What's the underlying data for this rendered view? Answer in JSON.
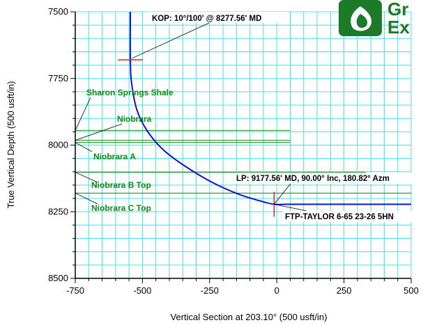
{
  "chart_data": {
    "type": "line",
    "xlabel": "Vertical Section at 203.10° (500 usft/in)",
    "ylabel": "True Vertical Depth (500 usft/in)",
    "xlim": [
      -750,
      500
    ],
    "ylim": [
      7500,
      8500
    ],
    "y_inverted": true,
    "x_ticks": [
      -750,
      -500,
      -250,
      0,
      250,
      500
    ],
    "y_ticks": [
      7500,
      7750,
      8000,
      8250,
      8500
    ],
    "x_tick_labels": [
      "-750",
      "-500",
      "-250",
      "0",
      "250",
      "500"
    ],
    "y_tick_labels": [
      "7500",
      "7750",
      "8000",
      "8250",
      "8500"
    ],
    "grid": true,
    "well_path": {
      "color": "#1010d0",
      "x": [
        -545,
        -545,
        -540,
        -520,
        -480,
        -420,
        -340,
        -240,
        -140,
        -60,
        -10,
        40,
        200,
        500
      ],
      "y": [
        7500,
        7680,
        7770,
        7870,
        7950,
        8020,
        8080,
        8140,
        8185,
        8210,
        8222,
        8222,
        8222,
        8222
      ]
    },
    "formations": [
      {
        "name": "Sharon Springs Shale",
        "x": [
          -750,
          50
        ],
        "y": [
          7945,
          7945
        ]
      },
      {
        "name": "Niobrara",
        "x": [
          -750,
          50
        ],
        "y": [
          7982,
          7982
        ]
      },
      {
        "name": "Niobrara A",
        "x": [
          -750,
          50
        ],
        "y": [
          7990,
          7990
        ]
      },
      {
        "name": "Niobrara B Top",
        "x": [
          -750,
          330
        ],
        "y": [
          8102,
          8102
        ]
      },
      {
        "name": "Niobrara C Top",
        "x": [
          -750,
          500
        ],
        "y": [
          8180,
          8180
        ]
      }
    ],
    "annotations": [
      {
        "text": "KOP: 10°/100' @ 8277.56' MD",
        "marker": [
          -545,
          7680
        ]
      },
      {
        "text": "LP:  9177.56' MD, 90.00° Inc, 180.82° Azm",
        "marker": [
          -10,
          8222
        ]
      },
      {
        "text": "FTP-TAYLOR 6-65 23-26 5HN",
        "marker": [
          -10,
          8222
        ]
      }
    ],
    "colors": {
      "grid": "#40e0e8",
      "formation": "#108a10",
      "well": "#1010d0",
      "marker": "#e02020"
    }
  },
  "logo": {
    "line1": "Gr",
    "line2": "Ex"
  }
}
